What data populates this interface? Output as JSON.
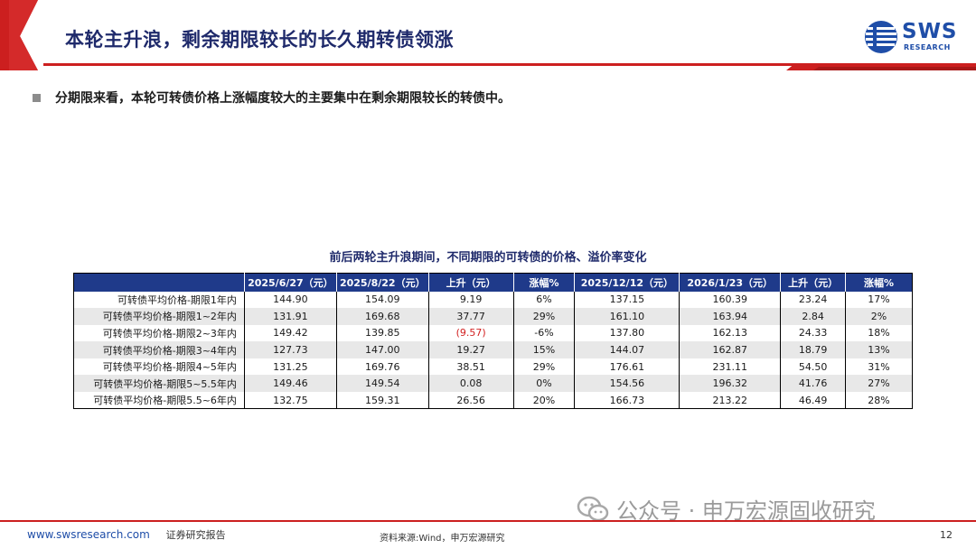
{
  "header": {
    "title": "本轮主升浪，剩余期限较长的长久期转债领涨",
    "logo_text": "SWS",
    "logo_sub": "RESEARCH"
  },
  "bullet": {
    "text": "分期限来看，本轮可转债价格上涨幅度较大的主要集中在剩余期限较长的转债中。"
  },
  "table": {
    "title": "前后两轮主升浪期间，不同期限的可转债的价格、溢价率变化",
    "headers": [
      "",
      "2025/6/27（元）",
      "2025/8/22（元）",
      "上升（元）",
      "涨幅%",
      "2025/12/12（元）",
      "2026/1/23（元）",
      "上升（元）",
      "涨幅%"
    ],
    "rows": [
      [
        "可转债平均价格-期限1年内",
        "144.90",
        "154.09",
        "9.19",
        "6%",
        "137.15",
        "160.39",
        "23.24",
        "17%"
      ],
      [
        "可转债平均价格-期限1~2年内",
        "131.91",
        "169.68",
        "37.77",
        "29%",
        "161.10",
        "163.94",
        "2.84",
        "2%"
      ],
      [
        "可转债平均价格-期限2~3年内",
        "149.42",
        "139.85",
        "(9.57)",
        "-6%",
        "137.80",
        "162.13",
        "24.33",
        "18%"
      ],
      [
        "可转债平均价格-期限3~4年内",
        "127.73",
        "147.00",
        "19.27",
        "15%",
        "144.07",
        "162.87",
        "18.79",
        "13%"
      ],
      [
        "可转债平均价格-期限4~5年内",
        "131.25",
        "169.76",
        "38.51",
        "29%",
        "176.61",
        "231.11",
        "54.50",
        "31%"
      ],
      [
        "可转债平均价格-期限5~5.5年内",
        "149.46",
        "149.54",
        "0.08",
        "0%",
        "154.56",
        "196.32",
        "41.76",
        "27%"
      ],
      [
        "可转债平均价格-期限5.5~6年内",
        "132.75",
        "159.31",
        "26.56",
        "20%",
        "166.73",
        "213.22",
        "46.49",
        "28%"
      ]
    ]
  },
  "footer": {
    "website": "www.swsresearch.com",
    "report_type": "证券研究报告",
    "source": "资料来源:Wind，申万宏源研究",
    "page": "12"
  },
  "watermark": {
    "text": "公众号 · 申万宏源固收研究"
  },
  "colors": {
    "brand_red": "#cc1f1f",
    "brand_navy": "#1f2a6b",
    "table_header": "#1f3a8a",
    "negative": "#d21f1f",
    "logo_blue": "#1f4ea8"
  }
}
